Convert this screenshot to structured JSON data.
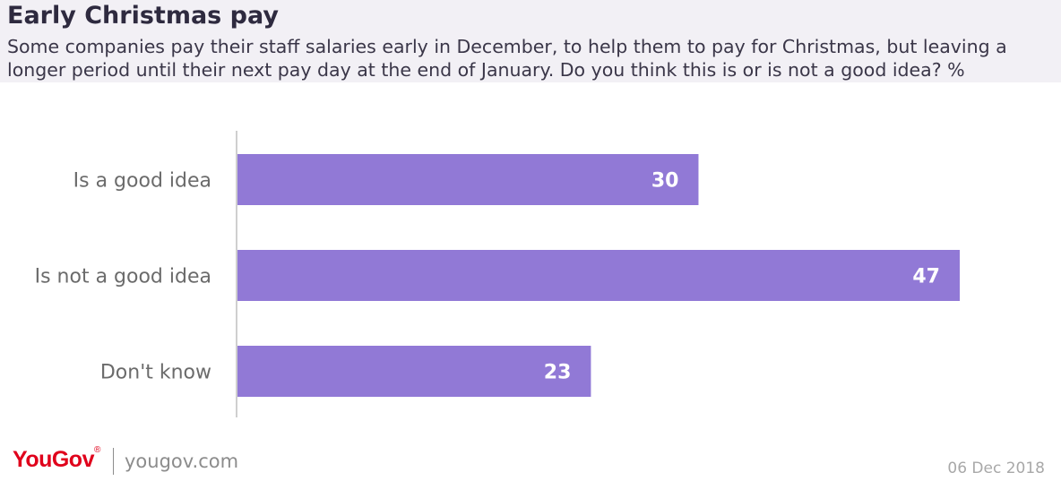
{
  "header": {
    "title": "Early Christmas pay",
    "subtitle": "Some companies pay their staff salaries early in December, to help them to pay for Christmas, but leaving a longer period until their next pay day at the end of January. Do you think this is or is not a good idea? %"
  },
  "chart_data": {
    "type": "bar",
    "orientation": "horizontal",
    "categories": [
      "Is a good idea",
      "Is not a good idea",
      "Don't know"
    ],
    "values": [
      30,
      47,
      23
    ],
    "xlim": [
      0,
      60
    ],
    "grid": false,
    "data_labels": true,
    "bar_color": "#9179d6"
  },
  "footer": {
    "logo_text": "YouGov",
    "logo_mark": "®",
    "site": "yougov.com",
    "date": "06 Dec 2018"
  },
  "colors": {
    "header_bg": "#f2f0f5",
    "bar": "#9179d6",
    "logo": "#e0001b"
  }
}
